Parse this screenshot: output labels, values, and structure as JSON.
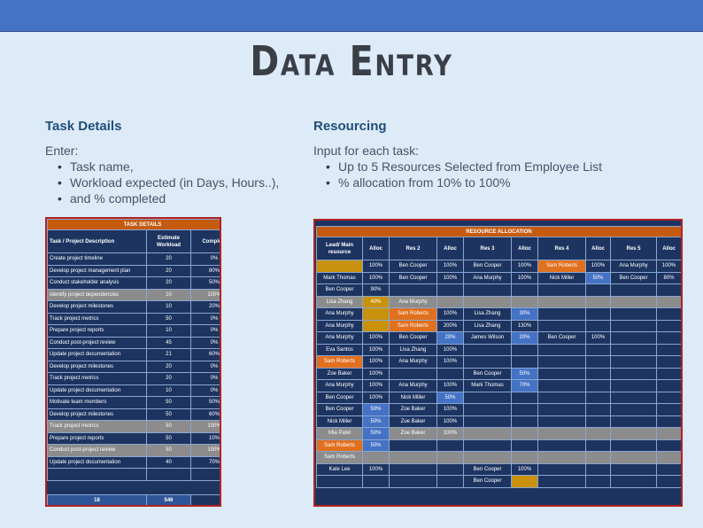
{
  "title": "Data Entry",
  "task_section": {
    "heading": "Task Details",
    "intro": "Enter:",
    "bullets": [
      "Task name,",
      "Workload expected (in Days, Hours..),",
      "and % completed"
    ]
  },
  "res_section": {
    "heading": "Resourcing",
    "intro": "Input for each task:",
    "bullets": [
      "Up to 5 Resources Selected from Employee List",
      "% allocation from 10% to 100%"
    ]
  },
  "task_table": {
    "banner": "TASK DETAILS",
    "headers": [
      "Task / Project Description",
      "Estimate Workload",
      "Complete"
    ],
    "rows": [
      {
        "task": "Create project timeline",
        "work": "20",
        "comp": "0%",
        "grey": false
      },
      {
        "task": "Develop project management plan",
        "work": "20",
        "comp": "80%",
        "grey": false
      },
      {
        "task": "Conduct stakeholder analysis",
        "work": "20",
        "comp": "50%",
        "grey": false
      },
      {
        "task": "Identify project dependencies",
        "work": "10",
        "comp": "100%",
        "grey": true
      },
      {
        "task": "Develop project milestones",
        "work": "10",
        "comp": "20%",
        "grey": false
      },
      {
        "task": "Track project metrics",
        "work": "50",
        "comp": "0%",
        "grey": false
      },
      {
        "task": "Prepare project reports",
        "work": "10",
        "comp": "0%",
        "grey": false
      },
      {
        "task": "Conduct post-project review",
        "work": "45",
        "comp": "0%",
        "grey": false
      },
      {
        "task": "Update project documentation",
        "work": "21",
        "comp": "60%",
        "grey": false
      },
      {
        "task": "Develop project milestones",
        "work": "20",
        "comp": "0%",
        "grey": false
      },
      {
        "task": "Track project metrics",
        "work": "20",
        "comp": "0%",
        "grey": false
      },
      {
        "task": "Update project documentation",
        "work": "10",
        "comp": "0%",
        "grey": false
      },
      {
        "task": "Motivate team members",
        "work": "50",
        "comp": "50%",
        "grey": false
      },
      {
        "task": "Develop project milestones",
        "work": "50",
        "comp": "60%",
        "grey": false
      },
      {
        "task": "Track project metrics",
        "work": "50",
        "comp": "100%",
        "grey": true
      },
      {
        "task": "Prepare project reports",
        "work": "50",
        "comp": "10%",
        "grey": false
      },
      {
        "task": "Conduct post-project review",
        "work": "50",
        "comp": "100%",
        "grey": true
      },
      {
        "task": "Update project documentation",
        "work": "40",
        "comp": "70%",
        "grey": false
      },
      {
        "task": "",
        "work": "",
        "comp": "",
        "grey": false
      }
    ],
    "totals": {
      "count": "18",
      "workload": "546"
    }
  },
  "resource_table": {
    "banner": "RESOURCE ALLOCATION",
    "headers": [
      "Lead/ Main resource",
      "Alloc",
      "Res 2",
      "Alloc",
      "Res 3",
      "Alloc",
      "Res 4",
      "Alloc",
      "Res 5",
      "Alloc"
    ],
    "rows": [
      [
        [
          "",
          "gold"
        ],
        [
          "100%",
          ""
        ],
        [
          "Ben Cooper",
          ""
        ],
        [
          "100%",
          ""
        ],
        [
          "Ben Cooper",
          ""
        ],
        [
          "100%",
          ""
        ],
        [
          "Sam Roberts",
          "orange"
        ],
        [
          "100%",
          ""
        ],
        [
          "Ana Murphy",
          ""
        ],
        [
          "100%",
          ""
        ]
      ],
      [
        [
          "Mark Thomas",
          ""
        ],
        [
          "100%",
          ""
        ],
        [
          "Ben Cooper",
          ""
        ],
        [
          "100%",
          ""
        ],
        [
          "Ana Murphy",
          ""
        ],
        [
          "100%",
          ""
        ],
        [
          "Nick Miller",
          ""
        ],
        [
          "50%",
          "blue"
        ],
        [
          "Ben Cooper",
          ""
        ],
        [
          "80%",
          ""
        ]
      ],
      [
        [
          "Ben Cooper",
          ""
        ],
        [
          "90%",
          ""
        ],
        [
          "",
          ""
        ],
        [
          "",
          ""
        ],
        [
          "",
          ""
        ],
        [
          "",
          ""
        ],
        [
          "",
          ""
        ],
        [
          "",
          ""
        ],
        [
          "",
          ""
        ],
        [
          "",
          ""
        ]
      ],
      [
        [
          "Lisa Zhang",
          "grey"
        ],
        [
          "40%",
          "gold"
        ],
        [
          "Ana Murphy",
          "grey"
        ],
        [
          "",
          "grey"
        ],
        [
          "",
          "grey"
        ],
        [
          "",
          "grey"
        ],
        [
          "",
          "grey"
        ],
        [
          "",
          "grey"
        ],
        [
          "",
          "grey"
        ],
        [
          "",
          "grey"
        ]
      ],
      [
        [
          "Ana Murphy",
          ""
        ],
        [
          "",
          "gold"
        ],
        [
          "Sam Roberts",
          "orange"
        ],
        [
          "100%",
          ""
        ],
        [
          "Lisa Zhang",
          ""
        ],
        [
          "30%",
          "blue"
        ],
        [
          "",
          ""
        ],
        [
          "",
          ""
        ],
        [
          "",
          ""
        ],
        [
          "",
          ""
        ]
      ],
      [
        [
          "Ana Murphy",
          ""
        ],
        [
          "",
          "gold"
        ],
        [
          "Sam Roberts",
          "orange"
        ],
        [
          "200%",
          ""
        ],
        [
          "Lisa Zhang",
          ""
        ],
        [
          "130%",
          ""
        ],
        [
          "",
          ""
        ],
        [
          "",
          ""
        ],
        [
          "",
          ""
        ],
        [
          "",
          ""
        ]
      ],
      [
        [
          "Ana Murphy",
          ""
        ],
        [
          "100%",
          ""
        ],
        [
          "Ben Cooper",
          ""
        ],
        [
          "20%",
          "blue"
        ],
        [
          "James Wilson",
          ""
        ],
        [
          "20%",
          "blue"
        ],
        [
          "Ben Cooper",
          ""
        ],
        [
          "100%",
          ""
        ],
        [
          "",
          ""
        ],
        [
          "",
          ""
        ]
      ],
      [
        [
          "Eva Santos",
          ""
        ],
        [
          "100%",
          ""
        ],
        [
          "Lisa Zhang",
          ""
        ],
        [
          "100%",
          ""
        ],
        [
          "",
          ""
        ],
        [
          "",
          ""
        ],
        [
          "",
          ""
        ],
        [
          "",
          ""
        ],
        [
          "",
          ""
        ],
        [
          "",
          ""
        ]
      ],
      [
        [
          "Sam Roberts",
          "orange"
        ],
        [
          "100%",
          ""
        ],
        [
          "Ana Murphy",
          ""
        ],
        [
          "100%",
          ""
        ],
        [
          "",
          ""
        ],
        [
          "",
          ""
        ],
        [
          "",
          ""
        ],
        [
          "",
          ""
        ],
        [
          "",
          ""
        ],
        [
          "",
          ""
        ]
      ],
      [
        [
          "Zoe Baker",
          ""
        ],
        [
          "100%",
          ""
        ],
        [
          "",
          ""
        ],
        [
          "",
          ""
        ],
        [
          "Ben Cooper",
          ""
        ],
        [
          "50%",
          "blue"
        ],
        [
          "",
          ""
        ],
        [
          "",
          ""
        ],
        [
          "",
          ""
        ],
        [
          "",
          ""
        ]
      ],
      [
        [
          "Ana Murphy",
          ""
        ],
        [
          "100%",
          ""
        ],
        [
          "Ana Murphy",
          ""
        ],
        [
          "100%",
          ""
        ],
        [
          "Mark Thomas",
          ""
        ],
        [
          "70%",
          "blue"
        ],
        [
          "",
          ""
        ],
        [
          "",
          ""
        ],
        [
          "",
          ""
        ],
        [
          "",
          ""
        ]
      ],
      [
        [
          "Ben Cooper",
          ""
        ],
        [
          "100%",
          ""
        ],
        [
          "Nick Miller",
          ""
        ],
        [
          "50%",
          "blue"
        ],
        [
          "",
          ""
        ],
        [
          "",
          ""
        ],
        [
          "",
          ""
        ],
        [
          "",
          ""
        ],
        [
          "",
          ""
        ],
        [
          "",
          ""
        ]
      ],
      [
        [
          "Ben Cooper",
          ""
        ],
        [
          "50%",
          "blue"
        ],
        [
          "Zoe Baker",
          ""
        ],
        [
          "100%",
          ""
        ],
        [
          "",
          ""
        ],
        [
          "",
          ""
        ],
        [
          "",
          ""
        ],
        [
          "",
          ""
        ],
        [
          "",
          ""
        ],
        [
          "",
          ""
        ]
      ],
      [
        [
          "Nick Miller",
          ""
        ],
        [
          "50%",
          "blue"
        ],
        [
          "Zoe Baker",
          ""
        ],
        [
          "100%",
          ""
        ],
        [
          "",
          ""
        ],
        [
          "",
          ""
        ],
        [
          "",
          ""
        ],
        [
          "",
          ""
        ],
        [
          "",
          ""
        ],
        [
          "",
          ""
        ]
      ],
      [
        [
          "Mia Patel",
          "grey"
        ],
        [
          "50%",
          "blue"
        ],
        [
          "Zoe Baker",
          "grey"
        ],
        [
          "100%",
          "grey"
        ],
        [
          "",
          "grey"
        ],
        [
          "",
          "grey"
        ],
        [
          "",
          "grey"
        ],
        [
          "",
          "grey"
        ],
        [
          "",
          "grey"
        ],
        [
          "",
          "grey"
        ]
      ],
      [
        [
          "Sam Roberts",
          "orange"
        ],
        [
          "50%",
          "blue"
        ],
        [
          "",
          ""
        ],
        [
          "",
          ""
        ],
        [
          "",
          ""
        ],
        [
          "",
          ""
        ],
        [
          "",
          ""
        ],
        [
          "",
          ""
        ],
        [
          "",
          ""
        ],
        [
          "",
          ""
        ]
      ],
      [
        [
          "Sam Roberts",
          "grey"
        ],
        [
          "",
          "grey"
        ],
        [
          "",
          "grey"
        ],
        [
          "",
          "grey"
        ],
        [
          "",
          "grey"
        ],
        [
          "",
          "grey"
        ],
        [
          "",
          "grey"
        ],
        [
          "",
          "grey"
        ],
        [
          "",
          "grey"
        ],
        [
          "",
          "grey"
        ]
      ],
      [
        [
          "Kate Lee",
          ""
        ],
        [
          "100%",
          ""
        ],
        [
          "",
          ""
        ],
        [
          "",
          ""
        ],
        [
          "Ben Cooper",
          ""
        ],
        [
          "100%",
          ""
        ],
        [
          "",
          ""
        ],
        [
          "",
          ""
        ],
        [
          "",
          ""
        ],
        [
          "",
          ""
        ]
      ],
      [
        [
          "",
          ""
        ],
        [
          "",
          ""
        ],
        [
          "",
          ""
        ],
        [
          "",
          ""
        ],
        [
          "Ben Cooper",
          ""
        ],
        [
          "",
          "gold"
        ],
        [
          "",
          ""
        ],
        [
          "",
          ""
        ],
        [
          "",
          ""
        ],
        [
          "",
          ""
        ]
      ]
    ]
  },
  "colors": {
    "top_bar": "#4472c4",
    "background": "#ddeaf8",
    "sheet": "#1d3461",
    "banner": "#c55a11",
    "highlight_orange": "#e1701e",
    "highlight_blue": "#4472c4",
    "highlight_gold": "#c9920c",
    "grey_row": "#8c8c8c",
    "frame": "#b22222"
  }
}
